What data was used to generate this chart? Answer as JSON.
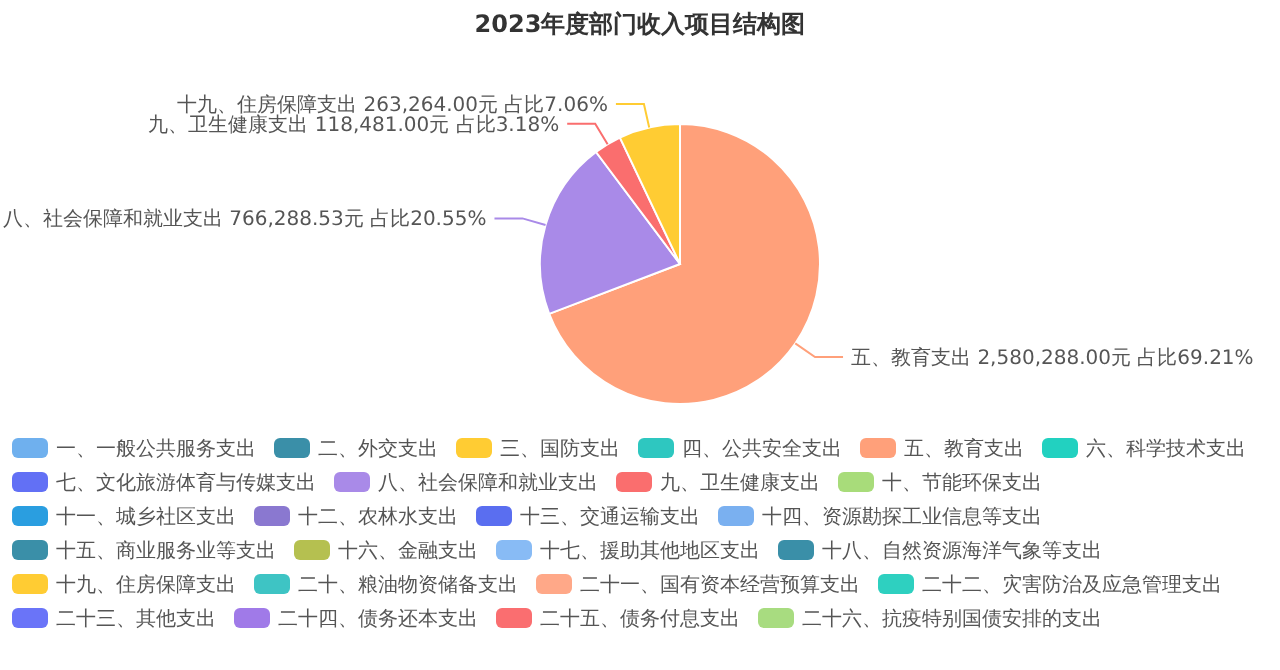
{
  "chart_data": {
    "type": "pie",
    "title": "2023年度部门收入项目结构图",
    "categories": [
      "一、一般公共服务支出",
      "二、外交支出",
      "三、国防支出",
      "四、公共安全支出",
      "五、教育支出",
      "六、科学技术支出",
      "七、文化旅游体育与传媒支出",
      "八、社会保障和就业支出",
      "九、卫生健康支出",
      "十、节能环保支出",
      "十一、城乡社区支出",
      "十二、农林水支出",
      "十三、交通运输支出",
      "十四、资源勘探工业信息等支出",
      "十五、商业服务业等支出",
      "十六、金融支出",
      "十七、援助其他地区支出",
      "十八、自然资源海洋气象等支出",
      "十九、住房保障支出",
      "二十、粮油物资储备支出",
      "二十一、国有资本经营预算支出",
      "二十二、灾害防治及应急管理支出",
      "二十三、其他支出",
      "二十四、债务还本支出",
      "二十五、债务付息支出",
      "二十六、抗疫特别国债安排的支出"
    ],
    "values": [
      0,
      0,
      0,
      0,
      2580288.0,
      0,
      0,
      766288.53,
      118481.0,
      0,
      0,
      0,
      0,
      0,
      0,
      0,
      0,
      0,
      263264.0,
      0,
      0,
      0,
      0,
      0,
      0,
      0
    ],
    "value_labels": [
      null,
      null,
      null,
      null,
      "五、教育支出 2,580,288.00元 占比69.21%",
      null,
      null,
      "八、社会保障和就业支出 766,288.53元 占比20.55%",
      "九、卫生健康支出 118,481.00元 占比3.18%",
      null,
      null,
      null,
      null,
      null,
      null,
      null,
      null,
      null,
      "十九、住房保障支出 263,264.00元 占比7.06%",
      null,
      null,
      null,
      null,
      null,
      null,
      null
    ],
    "colors": [
      "#6fb0ee",
      "#3a8fa8",
      "#ffcc33",
      "#2ec7c0",
      "#ffa07a",
      "#22d1c0",
      "#6270f5",
      "#a98ae8",
      "#fa6e6e",
      "#a8dc7a",
      "#2a9ee0",
      "#8a78d0",
      "#5a6ef0",
      "#7ab0f0",
      "#3a8fa8",
      "#b5c050",
      "#88bbf5",
      "#3a8fa8",
      "#ffcc33",
      "#3ec4c4",
      "#ffa888",
      "#2ed0c0",
      "#6a74f8",
      "#a07ae8",
      "#fa6e70",
      "#a8dc80"
    ],
    "legend": "bottom"
  }
}
